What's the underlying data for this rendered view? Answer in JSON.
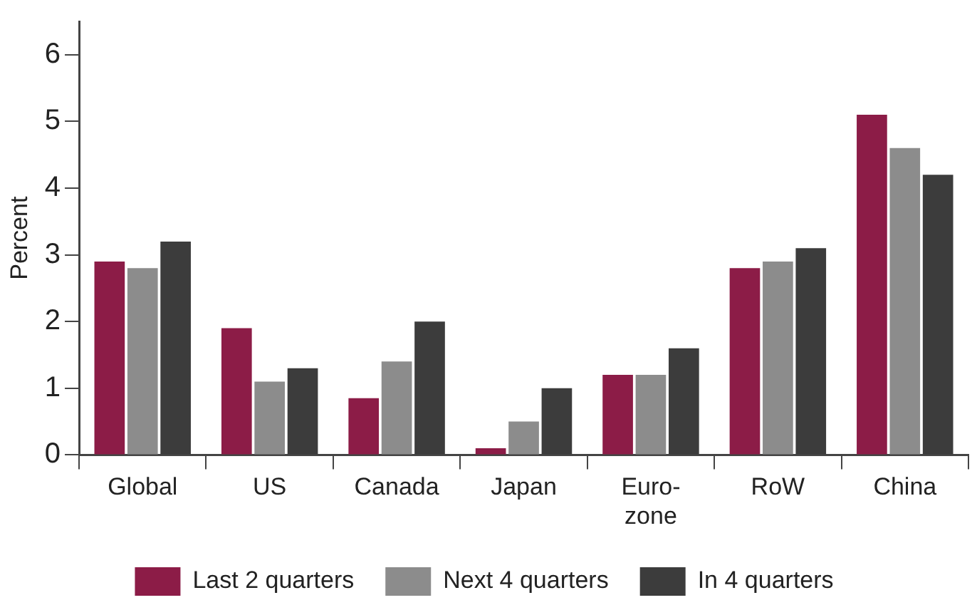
{
  "chart_data": {
    "type": "bar",
    "ylabel": "Percent",
    "categories": [
      "Global",
      "US",
      "Canada",
      "Japan",
      "Euro-\nzone",
      "RoW",
      "China"
    ],
    "series": [
      {
        "name": "Last 2 quarters",
        "color": "#8c1c47",
        "values": [
          2.9,
          1.9,
          0.85,
          0.1,
          1.2,
          2.8,
          5.1
        ]
      },
      {
        "name": "Next 4 quarters",
        "color": "#8c8c8c",
        "values": [
          2.8,
          1.1,
          1.4,
          0.5,
          1.2,
          2.9,
          4.6
        ]
      },
      {
        "name": "In 4 quarters",
        "color": "#3c3c3c",
        "values": [
          3.2,
          1.3,
          2.0,
          1.0,
          1.6,
          3.1,
          4.2
        ]
      }
    ],
    "ylim": [
      0,
      6.5
    ],
    "yticks": [
      0,
      1,
      2,
      3,
      4,
      5,
      6
    ],
    "grid": false,
    "legend": "bottom"
  }
}
